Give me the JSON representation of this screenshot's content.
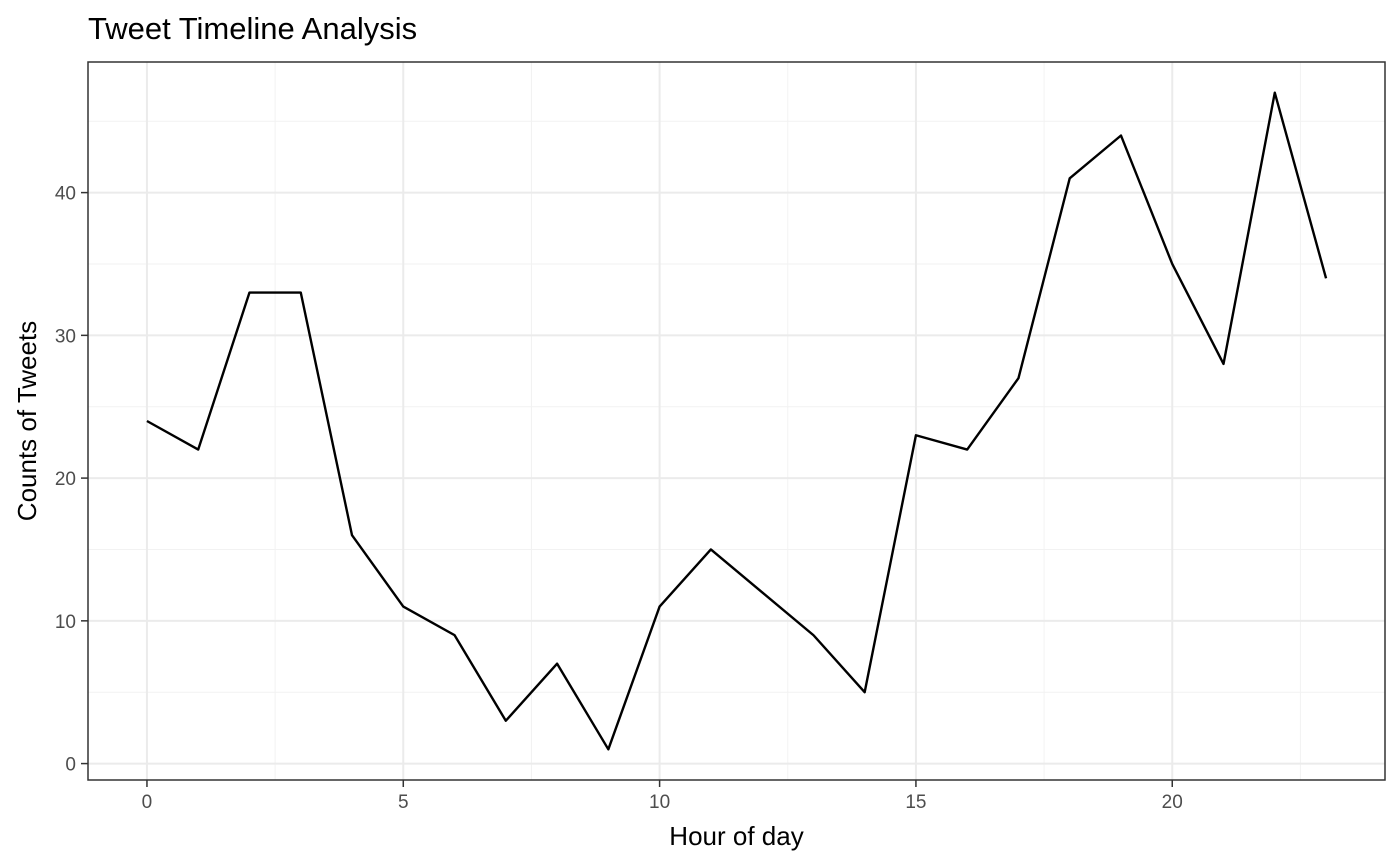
{
  "chart_data": {
    "type": "line",
    "title": "Tweet Timeline Analysis",
    "xlabel": "Hour of day",
    "ylabel": "Counts of Tweets",
    "x": [
      0,
      1,
      2,
      3,
      4,
      5,
      6,
      7,
      8,
      9,
      10,
      11,
      12,
      13,
      14,
      15,
      16,
      17,
      18,
      19,
      20,
      21,
      22,
      23
    ],
    "series": [
      {
        "values": [
          24,
          22,
          33,
          33,
          16,
          11,
          9,
          3,
          7,
          1,
          11,
          15,
          12,
          9,
          5,
          23,
          22,
          27,
          41,
          44,
          35,
          28,
          47,
          34
        ],
        "color": "#000000"
      }
    ],
    "xlim": [
      -1.15,
      24.15
    ],
    "ylim": [
      -1.15,
      49.15
    ],
    "x_ticks": [
      0,
      5,
      10,
      15,
      20
    ],
    "x_tick_labels": [
      "0",
      "5",
      "10",
      "15",
      "20"
    ],
    "y_ticks": [
      0,
      10,
      20,
      30,
      40
    ],
    "y_tick_labels": [
      "0",
      "10",
      "20",
      "30",
      "40"
    ],
    "x_minor_ticks": [
      2.5,
      7.5,
      12.5,
      17.5,
      22.5
    ],
    "y_minor_ticks": [
      5,
      15,
      25,
      35,
      45
    ],
    "grid": true,
    "legend": "none",
    "theme": "bw"
  }
}
